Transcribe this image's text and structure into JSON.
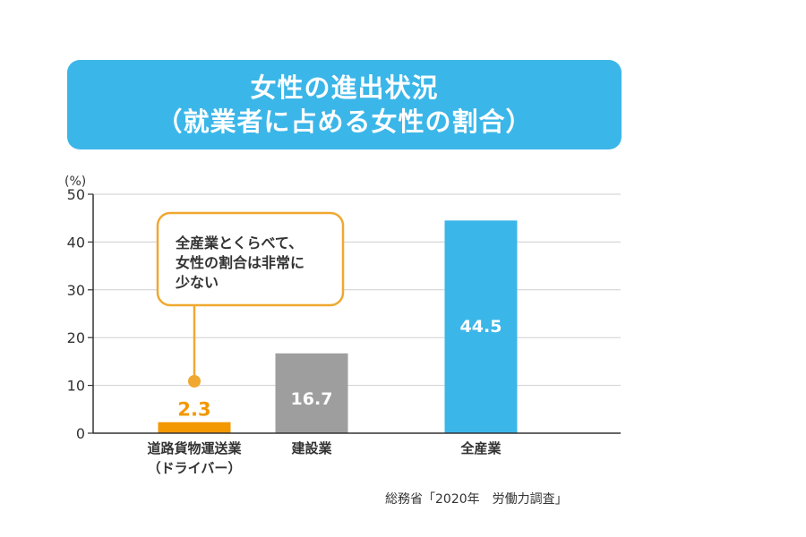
{
  "colors": {
    "title_bg": "#3bb6e9",
    "driver": "#f39800",
    "construction": "#9e9e9e",
    "all": "#3bb6e9",
    "callout": "#f0a830",
    "grid": "#cfcfcf"
  },
  "chart_data": {
    "type": "bar",
    "title": [
      "女性の進出状況",
      "（就業者に占める女性の割合）"
    ],
    "ylabel": "(%)",
    "ylim": [
      0,
      50
    ],
    "yticks": [
      0,
      10,
      20,
      30,
      40,
      50
    ],
    "grid": true,
    "categories": [
      {
        "name": [
          "道路貨物運送業",
          "（ドライバー）"
        ],
        "value": 2.3,
        "label": "2.3"
      },
      {
        "name": [
          "建設業"
        ],
        "value": 16.7,
        "label": "16.7"
      },
      {
        "name": [
          "全産業"
        ],
        "value": 44.5,
        "label": "44.5"
      }
    ],
    "annotation": [
      "全産業とくらべて、",
      "女性の割合は非常に",
      "少ない"
    ],
    "source": "総務省「2020年　労働力調査」"
  }
}
